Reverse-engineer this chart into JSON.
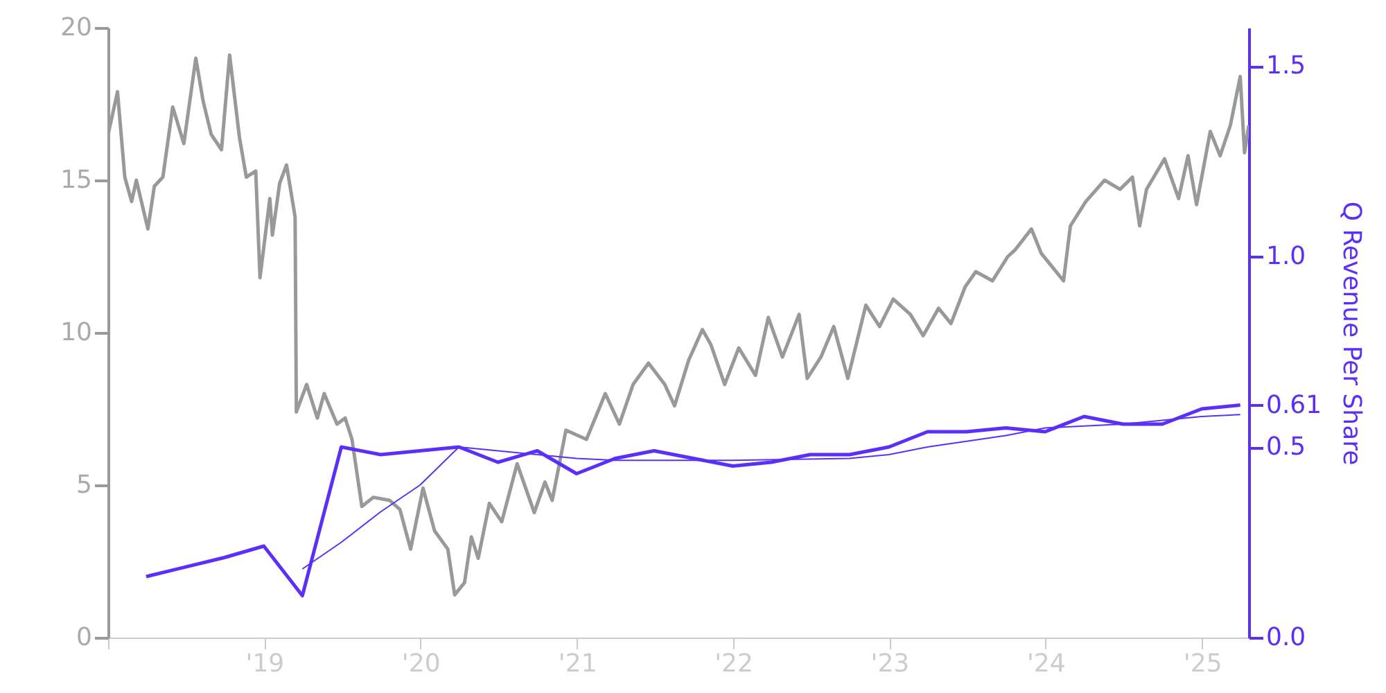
{
  "chart_data": {
    "type": "line",
    "y2label": "Q Revenue Per Share",
    "xlim": [
      "2018-01-01",
      "2025-04-20"
    ],
    "xticks": [
      {
        "value": "2018-01-01",
        "label": null
      },
      {
        "value": "2019-01-01",
        "label": "'19"
      },
      {
        "value": "2020-01-01",
        "label": "'20"
      },
      {
        "value": "2021-01-01",
        "label": "'21"
      },
      {
        "value": "2022-01-01",
        "label": "'22"
      },
      {
        "value": "2023-01-01",
        "label": "'23"
      },
      {
        "value": "2024-01-01",
        "label": "'24"
      },
      {
        "value": "2025-01-01",
        "label": "'25"
      }
    ],
    "ylim": [
      0,
      20
    ],
    "yticks": [
      0,
      5,
      10,
      15,
      20
    ],
    "y2lim": [
      0,
      1.6
    ],
    "y2ticks": [
      {
        "value": 0,
        "label": "0.0"
      },
      {
        "value": 0.5,
        "label": "0.5"
      },
      0.61,
      {
        "value": 1,
        "label": "1.0"
      },
      {
        "value": 1.5,
        "label": "1.5"
      }
    ],
    "series": [
      {
        "color": "#999999",
        "x": [
          "2018-01-01",
          "2018-01-23",
          "2018-02-09",
          "2018-02-25",
          "2018-03-08",
          "2018-04-04",
          "2018-04-19",
          "2018-05-09",
          "2018-06-01",
          "2018-06-27",
          "2018-07-25",
          "2018-08-11",
          "2018-08-30",
          "2018-09-23",
          "2018-10-12",
          "2018-11-04",
          "2018-11-20",
          "2018-12-12",
          "2018-12-22",
          "2019-01-14",
          "2019-01-20",
          "2019-02-06",
          "2019-02-22",
          "2019-03-14",
          "2019-03-17",
          "2019-04-10",
          "2019-05-05",
          "2019-05-21",
          "2019-06-20",
          "2019-07-09",
          "2019-07-25",
          "2019-08-17",
          "2019-09-13",
          "2019-10-21",
          "2019-11-14",
          "2019-12-09",
          "2020-01-07",
          "2020-02-03",
          "2020-03-05",
          "2020-03-21",
          "2020-04-13",
          "2020-04-29",
          "2020-05-15",
          "2020-06-10",
          "2020-07-09",
          "2020-08-14",
          "2020-09-23",
          "2020-10-18",
          "2020-11-04",
          "2020-12-06",
          "2021-01-23",
          "2021-03-08",
          "2021-04-10",
          "2021-05-12",
          "2021-06-17",
          "2021-07-25",
          "2021-08-17",
          "2021-09-19",
          "2021-10-21",
          "2021-11-10",
          "2021-12-12",
          "2022-01-14",
          "2022-02-22",
          "2022-03-24",
          "2022-04-26",
          "2022-06-04",
          "2022-06-23",
          "2022-07-25",
          "2022-08-24",
          "2022-09-26",
          "2022-11-07",
          "2022-12-09",
          "2023-01-10",
          "2023-02-19",
          "2023-03-21",
          "2023-04-26",
          "2023-05-25",
          "2023-06-27",
          "2023-07-22",
          "2023-08-30",
          "2023-10-05",
          "2023-10-21",
          "2023-11-29",
          "2023-12-22",
          "2024-02-12",
          "2024-02-28",
          "2024-04-04",
          "2024-05-18",
          "2024-06-23",
          "2024-07-22",
          "2024-08-08",
          "2024-08-24",
          "2024-10-05",
          "2024-11-07",
          "2024-11-29",
          "2024-12-19",
          "2025-01-20",
          "2025-02-12",
          "2025-03-08",
          "2025-03-31",
          "2025-04-10",
          "2025-04-20"
        ],
        "values": [
          16.5,
          17.9,
          15.1,
          14.3,
          15.0,
          13.4,
          14.8,
          15.1,
          17.4,
          16.2,
          19.0,
          17.6,
          16.5,
          16.0,
          19.1,
          16.4,
          15.1,
          15.3,
          11.8,
          14.4,
          13.2,
          14.9,
          15.5,
          13.8,
          7.4,
          8.3,
          7.2,
          8.0,
          7.0,
          7.2,
          6.5,
          4.3,
          4.6,
          4.5,
          4.2,
          2.9,
          4.9,
          3.5,
          2.9,
          1.4,
          1.8,
          3.3,
          2.6,
          4.4,
          3.8,
          5.7,
          4.1,
          5.1,
          4.5,
          6.8,
          6.5,
          8.0,
          7.0,
          8.3,
          9.0,
          8.3,
          7.6,
          9.1,
          10.1,
          9.6,
          8.3,
          9.5,
          8.6,
          10.5,
          9.2,
          10.6,
          8.5,
          9.2,
          10.2,
          8.5,
          10.9,
          10.2,
          11.1,
          10.6,
          9.9,
          10.8,
          10.3,
          11.5,
          12.0,
          11.7,
          12.5,
          12.7,
          13.4,
          12.6,
          11.7,
          13.5,
          14.3,
          15.0,
          14.7,
          15.1,
          13.5,
          14.7,
          15.7,
          14.4,
          15.8,
          14.2,
          16.6,
          15.8,
          16.8,
          18.4,
          15.9,
          16.8
        ]
      },
      {
        "color": "#5b2ff7",
        "axis": "y2",
        "x": [
          "2018-03-31",
          "2018-09-30",
          "2018-12-31",
          "2019-03-31",
          "2019-06-30",
          "2019-09-30",
          "2020-03-31",
          "2020-06-30",
          "2020-09-30",
          "2020-12-31",
          "2021-03-31",
          "2021-06-30",
          "2021-12-31",
          "2022-03-31",
          "2022-06-30",
          "2022-09-30",
          "2022-12-31",
          "2023-03-31",
          "2023-06-30",
          "2023-09-30",
          "2023-12-31",
          "2024-03-31",
          "2024-06-30",
          "2024-09-30",
          "2024-12-31",
          "2025-03-31"
        ],
        "values": [
          0.16,
          0.21,
          0.24,
          0.11,
          0.5,
          0.48,
          0.5,
          0.46,
          0.49,
          0.43,
          0.47,
          0.49,
          0.45,
          0.46,
          0.48,
          0.48,
          0.5,
          0.54,
          0.54,
          0.55,
          0.54,
          0.58,
          0.56,
          0.56,
          0.6,
          0.61
        ]
      },
      {
        "color": "#5b2ff7",
        "axis": "y2",
        "x": [
          "2019-03-31",
          "2019-06-30",
          "2019-09-30",
          "2019-12-31",
          "2020-03-31",
          "2020-06-30",
          "2020-09-30",
          "2020-12-31",
          "2021-03-31",
          "2021-12-31",
          "2022-09-30",
          "2022-12-31",
          "2023-03-31",
          "2023-09-30",
          "2023-12-31",
          "2024-06-30",
          "2024-12-31",
          "2025-03-31"
        ],
        "values": [
          0.18,
          0.25,
          0.33,
          0.4,
          0.5,
          0.49,
          0.48,
          0.47,
          0.465,
          0.465,
          0.47,
          0.48,
          0.5,
          0.53,
          0.55,
          0.56,
          0.58,
          0.585
        ]
      }
    ]
  }
}
